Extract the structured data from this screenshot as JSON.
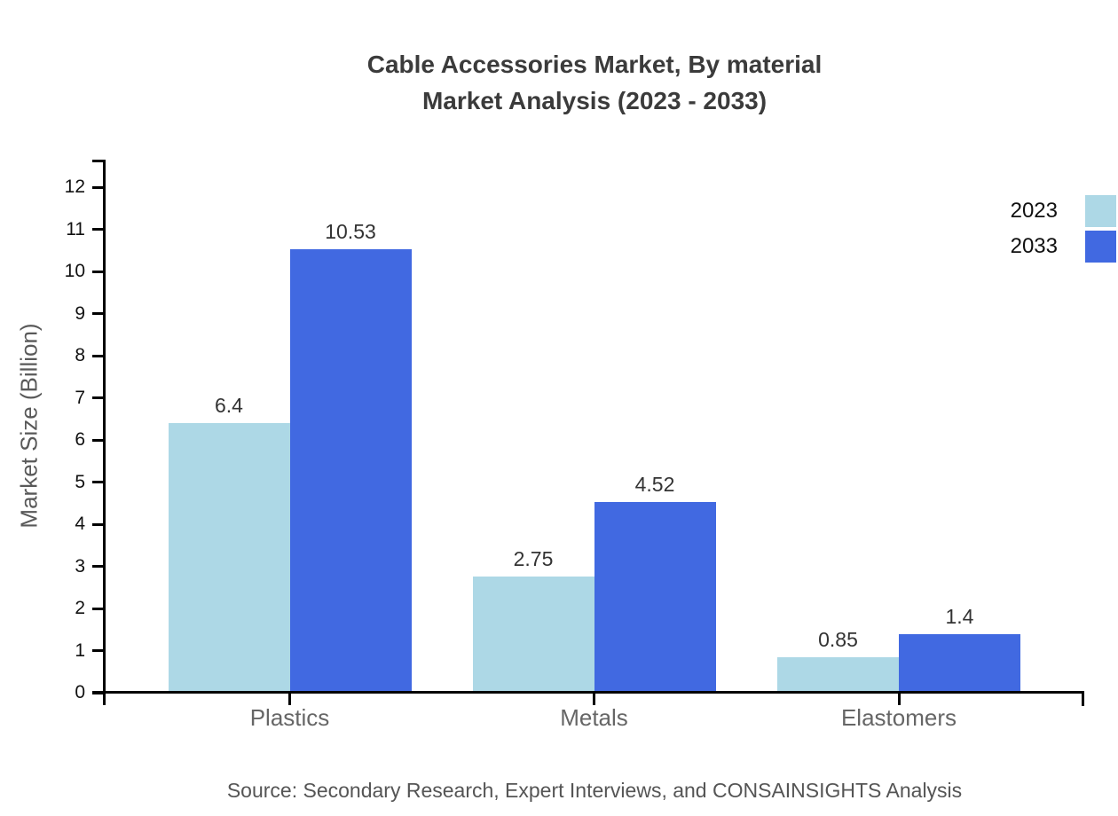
{
  "chart_data": {
    "type": "bar",
    "title_lines": [
      "Cable Accessories Market, By material",
      "Market Analysis (2023 - 2033)"
    ],
    "categories": [
      "Plastics",
      "Metals",
      "Elastomers"
    ],
    "series": [
      {
        "name": "2023",
        "color": "#ADD8E6",
        "values": [
          6.4,
          2.75,
          0.85
        ]
      },
      {
        "name": "2033",
        "color": "#4169E1",
        "values": [
          10.53,
          4.52,
          1.4
        ]
      }
    ],
    "value_labels": {
      "2023": [
        "6.4",
        "2.75",
        "0.85"
      ],
      "2033": [
        "10.53",
        "4.52",
        "1.4"
      ]
    },
    "ylabel": "Market Size (Billion)",
    "xlabel": "",
    "yticks": [
      0,
      1,
      2,
      3,
      4,
      5,
      6,
      7,
      8,
      9,
      10,
      11,
      12
    ],
    "ylim": [
      0,
      12.65
    ],
    "grid": false,
    "legend_position": "top-right",
    "source": "Source: Secondary Research, Expert Interviews, and CONSAINSIGHTS Analysis"
  },
  "colors": {
    "series_2023": "#ADD8E6",
    "series_2033": "#4169E1",
    "axis": "#000000",
    "title_text": "#3b3b3b",
    "tick_label_text": "#111111",
    "category_label_text": "#666666",
    "value_label_text": "#333333",
    "y_axis_title_text": "#595959",
    "source_text": "#555555",
    "background": "#ffffff"
  }
}
